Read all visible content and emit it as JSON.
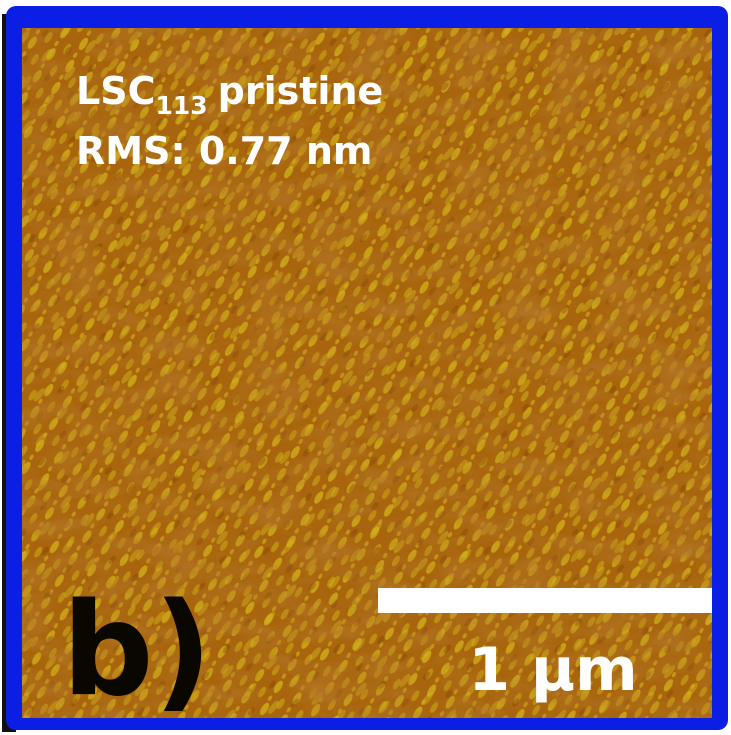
{
  "annotation": {
    "sample": {
      "main": "LSC",
      "subscript": "113",
      "rest": "pristine"
    },
    "rms": "RMS: 0.77 nm"
  },
  "panel_label": "b)",
  "scale_bar_label": "1 μm"
}
